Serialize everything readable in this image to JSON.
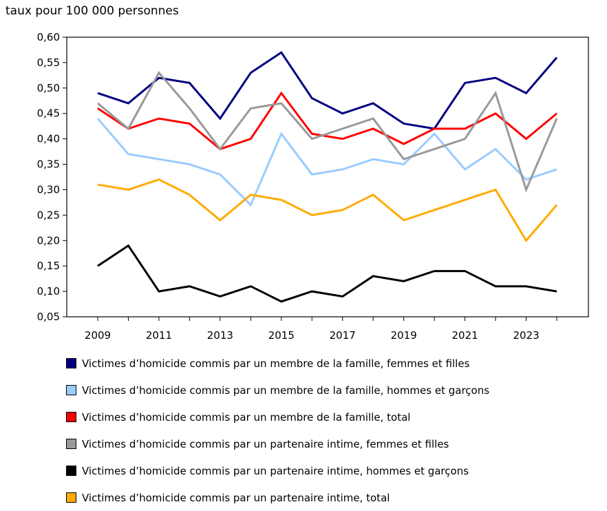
{
  "chart_data": {
    "type": "line",
    "ylabel": "taux pour 100 000 personnes",
    "ylim": [
      0.05,
      0.6
    ],
    "yticks": [
      "0,05",
      "0,10",
      "0,15",
      "0,20",
      "0,25",
      "0,30",
      "0,35",
      "0,40",
      "0,45",
      "0,50",
      "0,55",
      "0,60"
    ],
    "x": [
      2009,
      2010,
      2011,
      2012,
      2013,
      2014,
      2015,
      2016,
      2017,
      2018,
      2019,
      2020,
      2021,
      2022,
      2023,
      2024
    ],
    "xticks": [
      "2009",
      "2011",
      "2013",
      "2015",
      "2017",
      "2019",
      "2021",
      "2023"
    ],
    "grid": false,
    "legend_placement": "bottom",
    "series": [
      {
        "name": "Victimes d’homicide commis par un membre de la famille, femmes et filles",
        "color": "#000080",
        "values": [
          0.49,
          0.47,
          0.52,
          0.51,
          0.44,
          0.53,
          0.57,
          0.48,
          0.45,
          0.47,
          0.43,
          0.42,
          0.51,
          0.52,
          0.49,
          0.56
        ]
      },
      {
        "name": "Victimes d’homicide commis par un membre de la famille, hommes et garçons",
        "color": "#99ccff",
        "values": [
          0.44,
          0.37,
          0.36,
          0.35,
          0.33,
          0.27,
          0.41,
          0.33,
          0.34,
          0.36,
          0.35,
          0.41,
          0.34,
          0.38,
          0.32,
          0.34
        ]
      },
      {
        "name": "Victimes d’homicide commis par un membre de la famille, total",
        "color": "#ff0000",
        "values": [
          0.46,
          0.42,
          0.44,
          0.43,
          0.38,
          0.4,
          0.49,
          0.41,
          0.4,
          0.42,
          0.39,
          0.42,
          0.42,
          0.45,
          0.4,
          0.45
        ]
      },
      {
        "name": "Victimes d’homicide commis par un partenaire intime, femmes et filles",
        "color": "#999999",
        "values": [
          0.47,
          0.42,
          0.53,
          0.46,
          0.38,
          0.46,
          0.47,
          0.4,
          0.42,
          0.44,
          0.36,
          0.38,
          0.4,
          0.49,
          0.3,
          0.44
        ]
      },
      {
        "name": "Victimes d’homicide commis par un partenaire intime, hommes et garçons",
        "color": "#000000",
        "values": [
          0.15,
          0.19,
          0.1,
          0.11,
          0.09,
          0.11,
          0.08,
          0.1,
          0.09,
          0.13,
          0.12,
          0.14,
          0.14,
          0.11,
          0.11,
          0.1
        ]
      },
      {
        "name": "Victimes d’homicide commis par un partenaire intime, total",
        "color": "#ffaa00",
        "values": [
          0.31,
          0.3,
          0.32,
          0.29,
          0.24,
          0.29,
          0.28,
          0.25,
          0.26,
          0.29,
          0.24,
          0.26,
          0.28,
          0.3,
          0.2,
          0.27
        ]
      }
    ]
  }
}
